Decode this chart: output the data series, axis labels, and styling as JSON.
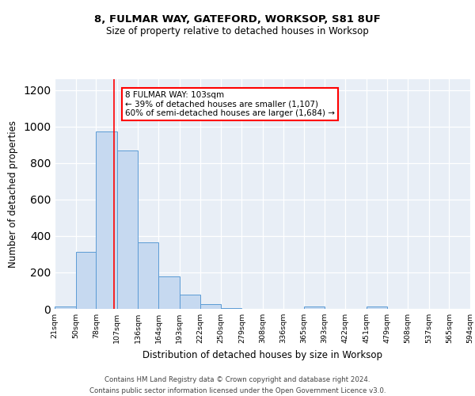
{
  "title1": "8, FULMAR WAY, GATEFORD, WORKSOP, S81 8UF",
  "title2": "Size of property relative to detached houses in Worksop",
  "xlabel": "Distribution of detached houses by size in Worksop",
  "ylabel": "Number of detached properties",
  "bin_labels": [
    "21sqm",
    "50sqm",
    "78sqm",
    "107sqm",
    "136sqm",
    "164sqm",
    "193sqm",
    "222sqm",
    "250sqm",
    "279sqm",
    "308sqm",
    "336sqm",
    "365sqm",
    "393sqm",
    "422sqm",
    "451sqm",
    "479sqm",
    "508sqm",
    "537sqm",
    "565sqm",
    "594sqm"
  ],
  "bin_edges": [
    21,
    50,
    78,
    107,
    136,
    164,
    193,
    222,
    250,
    279,
    308,
    336,
    365,
    393,
    422,
    451,
    479,
    508,
    537,
    565,
    594
  ],
  "bar_heights": [
    15,
    315,
    975,
    870,
    365,
    180,
    80,
    25,
    5,
    0,
    0,
    0,
    15,
    0,
    0,
    15,
    0,
    0,
    0,
    0,
    0
  ],
  "bar_color": "#c6d9f0",
  "bar_edge_color": "#5b9bd5",
  "property_value": 103,
  "red_line_color": "#ff0000",
  "annotation_line1": "8 FULMAR WAY: 103sqm",
  "annotation_line2": "← 39% of detached houses are smaller (1,107)",
  "annotation_line3": "60% of semi-detached houses are larger (1,684) →",
  "annotation_box_color": "#ffffff",
  "annotation_box_edge": "#ff0000",
  "background_color": "#e8eef6",
  "footer_text": "Contains HM Land Registry data © Crown copyright and database right 2024.\nContains public sector information licensed under the Open Government Licence v3.0.",
  "ylim": [
    0,
    1260
  ],
  "yticks": [
    0,
    200,
    400,
    600,
    800,
    1000,
    1200
  ]
}
